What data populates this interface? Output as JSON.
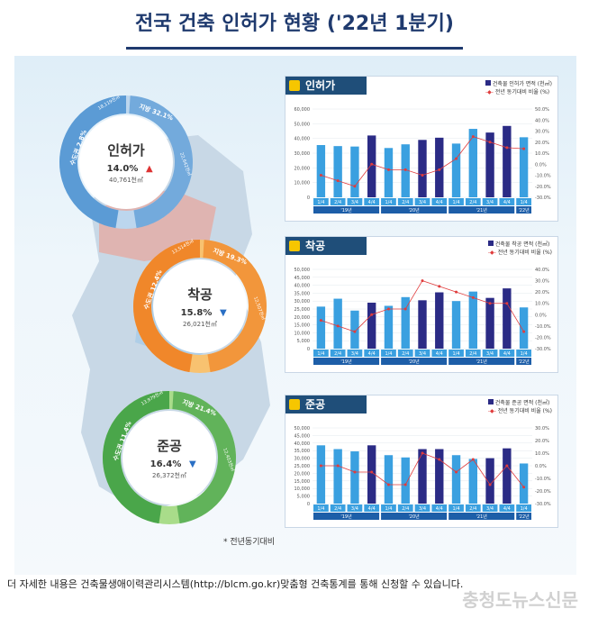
{
  "header": {
    "title": "전국 건축 인허가 현황 ('22년 1분기)"
  },
  "note": "* 전년동기대비",
  "footer": "더 자세한 내용은 건축물생애이력관리시스템(http://blcm.go.kr)맞춤형 건축통계를 통해 신청할 수 있습니다.",
  "watermark": "충청도뉴스신문",
  "colors": {
    "permit": "#5b9bd5",
    "start": "#f4a530",
    "finish": "#7cc35a",
    "bar_light": "#3aa0e0",
    "bar_dark": "#2b2b85",
    "line": "#e03c3c"
  },
  "donuts": [
    {
      "name": "인허가",
      "pct": "14.0%",
      "arrow": "up",
      "area": "40,761천㎡",
      "capital": "수도권 2.8%",
      "local": "지방 32.1%",
      "capital_val": "18,119천㎡",
      "local_val": "22,642천㎡",
      "color": "#5b9bd5",
      "light": "#bcd6ee"
    },
    {
      "name": "착공",
      "pct": "15.8%",
      "arrow": "down",
      "area": "26,021천㎡",
      "capital": "수도권 12.4%",
      "local": "지방 19.3%",
      "capital_val": "13,514천㎡",
      "local_val": "12,507천㎡",
      "color": "#f0872a",
      "light": "#f8c270"
    },
    {
      "name": "준공",
      "pct": "16.4%",
      "arrow": "down",
      "area": "26,372천㎡",
      "capital": "수도권 11.4%",
      "local": "지방 21.4%",
      "capital_val": "13,979천㎡",
      "local_val": "12,403천㎡",
      "color": "#4aa64a",
      "light": "#a9dc8a"
    }
  ],
  "panels": [
    {
      "label": "인허가",
      "legend_bar": "건축물 인허가 면적 (천㎡)",
      "legend_line": "전년 동기대비 비율 (%)"
    },
    {
      "label": "착공",
      "legend_bar": "건축물 착공 면적 (천㎡)",
      "legend_line": "전년 동기대비 비율 (%)"
    },
    {
      "label": "준공",
      "legend_bar": "건축물 준공 면적 (천㎡)",
      "legend_line": "전년 동기대비 비율 (%)"
    }
  ],
  "chart_data": [
    {
      "type": "bar",
      "title": "인허가",
      "categories": [
        "1/4",
        "2/4",
        "3/4",
        "4/4",
        "1/4",
        "2/4",
        "3/4",
        "4/4",
        "1/4",
        "2/4",
        "3/4",
        "4/4",
        "1/4"
      ],
      "years": [
        "'19년",
        "'20년",
        "'21년",
        "'22년"
      ],
      "series": [
        {
          "name": "건축물 인허가 면적 (천㎡)",
          "values": [
            35500,
            34800,
            34500,
            42000,
            33500,
            36000,
            39000,
            40500,
            36500,
            46500,
            44000,
            48500,
            40800
          ]
        },
        {
          "name": "전년 동기대비 비율 (%)",
          "values": [
            -10,
            -15,
            -20,
            0,
            -5,
            -5,
            -10,
            -5,
            5,
            25,
            20,
            15,
            14
          ]
        }
      ],
      "ylim": [
        0,
        60000
      ],
      "y2lim": [
        -30,
        50
      ]
    },
    {
      "type": "bar",
      "title": "착공",
      "categories": [
        "1/4",
        "2/4",
        "3/4",
        "4/4",
        "1/4",
        "2/4",
        "3/4",
        "4/4",
        "1/4",
        "2/4",
        "3/4",
        "4/4",
        "1/4"
      ],
      "years": [
        "'19년",
        "'20년",
        "'21년",
        "'22년"
      ],
      "series": [
        {
          "name": "건축물 착공 면적 (천㎡)",
          "values": [
            26500,
            31500,
            24000,
            29000,
            27000,
            32500,
            30500,
            35500,
            30000,
            36000,
            32000,
            38000,
            26000
          ]
        },
        {
          "name": "전년 동기대비 비율 (%)",
          "values": [
            -5,
            -10,
            -15,
            0,
            5,
            5,
            30,
            25,
            20,
            15,
            10,
            10,
            -15
          ]
        }
      ],
      "ylim": [
        0,
        50000
      ],
      "y2lim": [
        -30,
        40
      ]
    },
    {
      "type": "bar",
      "title": "준공",
      "categories": [
        "1/4",
        "2/4",
        "3/4",
        "4/4",
        "1/4",
        "2/4",
        "3/4",
        "4/4",
        "1/4",
        "2/4",
        "3/4",
        "4/4",
        "1/4"
      ],
      "years": [
        "'19년",
        "'20년",
        "'21년",
        "'22년"
      ],
      "series": [
        {
          "name": "건축물 준공 면적 (천㎡)",
          "values": [
            38500,
            36000,
            34500,
            38500,
            32000,
            30500,
            36000,
            36000,
            32000,
            29500,
            30000,
            36500,
            26500
          ]
        },
        {
          "name": "전년 동기대비 비율 (%)",
          "values": [
            0,
            0,
            -5,
            -5,
            -15,
            -15,
            10,
            5,
            -5,
            5,
            -15,
            0,
            -17
          ]
        }
      ],
      "ylim": [
        0,
        50000
      ],
      "y2lim": [
        -30,
        30
      ]
    }
  ]
}
